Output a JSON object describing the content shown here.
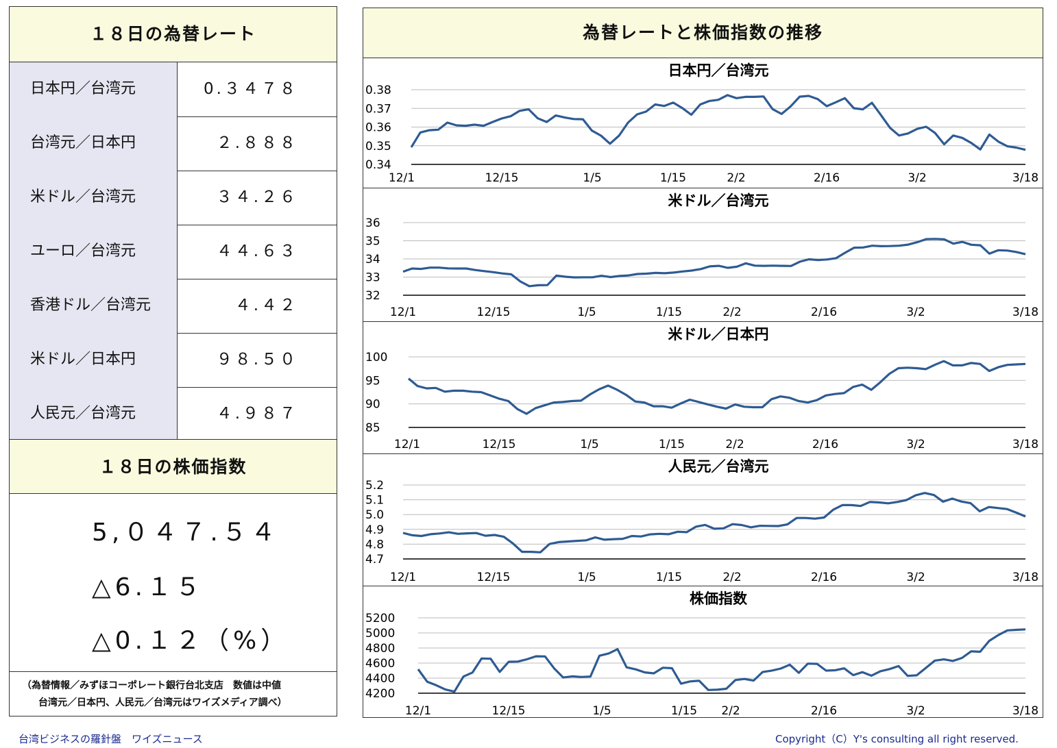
{
  "left": {
    "rates_title": "１８日の為替レート",
    "rates": [
      {
        "label": "日本円／台湾元",
        "value": "0.３４７８"
      },
      {
        "label": "台湾元／日本円",
        "value": "２.８８８"
      },
      {
        "label": "米ドル／台湾元",
        "value": "３４.２６"
      },
      {
        "label": "ユーロ／台湾元",
        "value": "４４.６３"
      },
      {
        "label": "香港ドル／台湾元",
        "value": "４.４２"
      },
      {
        "label": "米ドル／日本円",
        "value": "９８.５０"
      },
      {
        "label": "人民元／台湾元",
        "value": "４.９８７"
      }
    ],
    "stock_title": "１８日の株価指数",
    "stock_value": "5,０４７.５４",
    "stock_change": "△6.１５",
    "stock_change_pct": "△0.１２（%）",
    "note_line1": "（為替情報／みずほコーポレート銀行台北支店　数値は中値",
    "note_line2": "台湾元／日本円、人民元／台湾元はワイズメディア調べ）"
  },
  "right": {
    "title": "為替レートと株価指数の推移"
  },
  "footer": {
    "left_text": "台湾ビジネスの羅針盤　ワイズニュース",
    "right_text": "Copyright（C）Y's consulting all right reserved."
  },
  "colors": {
    "line": "#2e5b93",
    "header_bg": "#fafade",
    "label_bg": "#e6e6f2"
  },
  "chart_data": [
    {
      "type": "line",
      "title": "日本円／台湾元",
      "x_ticks": [
        "12/1",
        "12/15",
        "1/5",
        "1/15",
        "2/2",
        "2/16",
        "3/2",
        "3/18"
      ],
      "y_ticks": [
        "0.38",
        "0.37",
        "0.36",
        "0.35",
        "0.34"
      ],
      "ylim": [
        0.34,
        0.38
      ],
      "values": [
        0.3492,
        0.3571,
        0.3583,
        0.3586,
        0.3624,
        0.3609,
        0.3607,
        0.3613,
        0.3607,
        0.3627,
        0.3646,
        0.3658,
        0.3687,
        0.3695,
        0.3647,
        0.3627,
        0.3662,
        0.3651,
        0.3643,
        0.3642,
        0.3581,
        0.3554,
        0.3511,
        0.3554,
        0.3624,
        0.3668,
        0.3683,
        0.3721,
        0.3713,
        0.3731,
        0.3702,
        0.3666,
        0.3721,
        0.374,
        0.3746,
        0.3771,
        0.3755,
        0.3762,
        0.3762,
        0.3764,
        0.3696,
        0.367,
        0.3711,
        0.3763,
        0.3767,
        0.375,
        0.3712,
        0.3733,
        0.3755,
        0.3701,
        0.3695,
        0.373,
        0.3664,
        0.3596,
        0.3555,
        0.3566,
        0.359,
        0.3602,
        0.3568,
        0.3508,
        0.3555,
        0.3542,
        0.3515,
        0.348,
        0.356,
        0.3522,
        0.3497,
        0.349,
        0.3478
      ]
    },
    {
      "type": "line",
      "title": "米ドル／台湾元",
      "x_ticks": [
        "12/1",
        "12/15",
        "1/5",
        "1/15",
        "2/2",
        "2/16",
        "3/2",
        "3/18"
      ],
      "y_ticks": [
        "36",
        "35",
        "34",
        "33",
        "32"
      ],
      "ylim": [
        32,
        36
      ],
      "values": [
        33.3,
        33.47,
        33.45,
        33.52,
        33.52,
        33.48,
        33.47,
        33.47,
        33.39,
        33.33,
        33.27,
        33.2,
        33.15,
        32.76,
        32.5,
        32.55,
        32.56,
        33.08,
        33.02,
        32.98,
        32.99,
        32.99,
        33.07,
        33.0,
        33.06,
        33.09,
        33.17,
        33.19,
        33.23,
        33.21,
        33.25,
        33.31,
        33.36,
        33.44,
        33.59,
        33.62,
        33.51,
        33.57,
        33.76,
        33.63,
        33.62,
        33.63,
        33.62,
        33.61,
        33.85,
        33.98,
        33.94,
        33.97,
        34.04,
        34.34,
        34.62,
        34.63,
        34.73,
        34.7,
        34.71,
        34.73,
        34.79,
        34.92,
        35.09,
        35.1,
        35.08,
        34.84,
        34.94,
        34.78,
        34.75,
        34.29,
        34.48,
        34.46,
        34.38,
        34.26
      ]
    },
    {
      "type": "line",
      "title": "米ドル／日本円",
      "x_ticks": [
        "12/1",
        "12/15",
        "1/5",
        "1/15",
        "2/2",
        "2/16",
        "3/2",
        "3/18"
      ],
      "y_ticks": [
        "100",
        "95",
        "90",
        "85"
      ],
      "ylim": [
        85,
        100
      ],
      "values": [
        95.4,
        93.8,
        93.3,
        93.4,
        92.6,
        92.8,
        92.8,
        92.6,
        92.5,
        91.8,
        91.1,
        90.6,
        88.9,
        87.9,
        89.1,
        89.7,
        90.3,
        90.4,
        90.6,
        90.7,
        92.0,
        93.1,
        93.9,
        93.0,
        91.9,
        90.5,
        90.3,
        89.5,
        89.5,
        89.2,
        90.1,
        90.9,
        90.4,
        89.9,
        89.4,
        89.0,
        89.9,
        89.4,
        89.3,
        89.3,
        91.0,
        91.6,
        91.3,
        90.6,
        90.3,
        90.8,
        91.8,
        92.1,
        92.3,
        93.6,
        94.1,
        93.0,
        94.6,
        96.4,
        97.6,
        97.7,
        97.6,
        97.4,
        98.3,
        99.1,
        98.2,
        98.2,
        98.7,
        98.5,
        97.0,
        97.8,
        98.3,
        98.4,
        98.5
      ]
    },
    {
      "type": "line",
      "title": "人民元／台湾元",
      "x_ticks": [
        "12/1",
        "12/15",
        "1/5",
        "1/15",
        "2/2",
        "2/16",
        "3/2",
        "3/18"
      ],
      "y_ticks": [
        "5.2",
        "5.1",
        "5.0",
        "4.9",
        "4.8",
        "4.7"
      ],
      "ylim": [
        4.7,
        5.2
      ],
      "values": [
        4.876,
        4.86,
        4.855,
        4.867,
        4.872,
        4.88,
        4.87,
        4.873,
        4.875,
        4.857,
        4.862,
        4.85,
        4.805,
        4.748,
        4.748,
        4.745,
        4.801,
        4.814,
        4.818,
        4.822,
        4.826,
        4.846,
        4.83,
        4.834,
        4.836,
        4.855,
        4.852,
        4.866,
        4.87,
        4.867,
        4.884,
        4.881,
        4.918,
        4.93,
        4.904,
        4.907,
        4.935,
        4.929,
        4.914,
        4.924,
        4.923,
        4.922,
        4.934,
        4.977,
        4.977,
        4.972,
        4.98,
        5.033,
        5.064,
        5.064,
        5.058,
        5.085,
        5.082,
        5.076,
        5.085,
        5.098,
        5.13,
        5.146,
        5.132,
        5.087,
        5.108,
        5.088,
        5.077,
        5.022,
        5.051,
        5.044,
        5.037,
        5.013,
        4.987
      ]
    },
    {
      "type": "line",
      "title": "株価指数",
      "x_ticks": [
        "12/1",
        "12/15",
        "1/5",
        "1/15",
        "2/2",
        "2/16",
        "3/2",
        "3/18"
      ],
      "y_ticks": [
        "5200",
        "5000",
        "4800",
        "4600",
        "4400",
        "4200"
      ],
      "ylim": [
        4200,
        5200
      ],
      "values": [
        4518,
        4353,
        4305,
        4249,
        4221,
        4421,
        4475,
        4661,
        4657,
        4483,
        4617,
        4620,
        4650,
        4690,
        4688,
        4530,
        4408,
        4424,
        4415,
        4421,
        4697,
        4726,
        4785,
        4544,
        4516,
        4476,
        4464,
        4538,
        4532,
        4326,
        4356,
        4365,
        4243,
        4246,
        4259,
        4375,
        4389,
        4367,
        4481,
        4499,
        4527,
        4578,
        4470,
        4593,
        4590,
        4500,
        4505,
        4530,
        4440,
        4479,
        4433,
        4492,
        4520,
        4560,
        4430,
        4437,
        4535,
        4633,
        4649,
        4628,
        4668,
        4755,
        4750,
        4895,
        4971,
        5034,
        5041,
        5047
      ]
    }
  ]
}
